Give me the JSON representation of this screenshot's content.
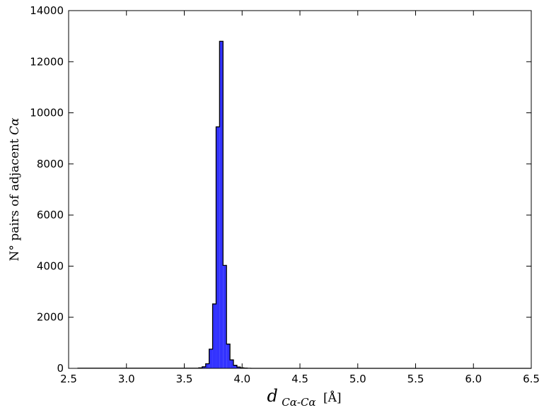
{
  "chart_data": {
    "type": "bar",
    "title": "",
    "xlabel": {
      "symbol": "d",
      "subscript": "Cα-Cα",
      "unit": "[Å]"
    },
    "ylabel": {
      "text": "N° pairs of adjacent ",
      "symbol": "Cα"
    },
    "xlim": [
      2.5,
      6.5
    ],
    "ylim": [
      0,
      14000
    ],
    "xticks": [
      "2.5",
      "3.0",
      "3.5",
      "4.0",
      "4.5",
      "5.0",
      "5.5",
      "6.0",
      "6.5"
    ],
    "yticks": [
      "0",
      "2000",
      "4000",
      "6000",
      "8000",
      "10000",
      "12000",
      "14000"
    ],
    "grid": false,
    "bar_color": "#3333ff",
    "bin_edges": [
      2.58,
      3.625,
      3.655,
      3.685,
      3.715,
      3.745,
      3.775,
      3.805,
      3.835,
      3.865,
      3.895,
      3.925,
      3.955,
      3.985,
      4.015,
      4.045,
      4.075,
      6.5
    ],
    "values": [
      5,
      20,
      60,
      180,
      750,
      2520,
      9450,
      12800,
      4030,
      950,
      330,
      120,
      50,
      20,
      8,
      3,
      0
    ]
  }
}
